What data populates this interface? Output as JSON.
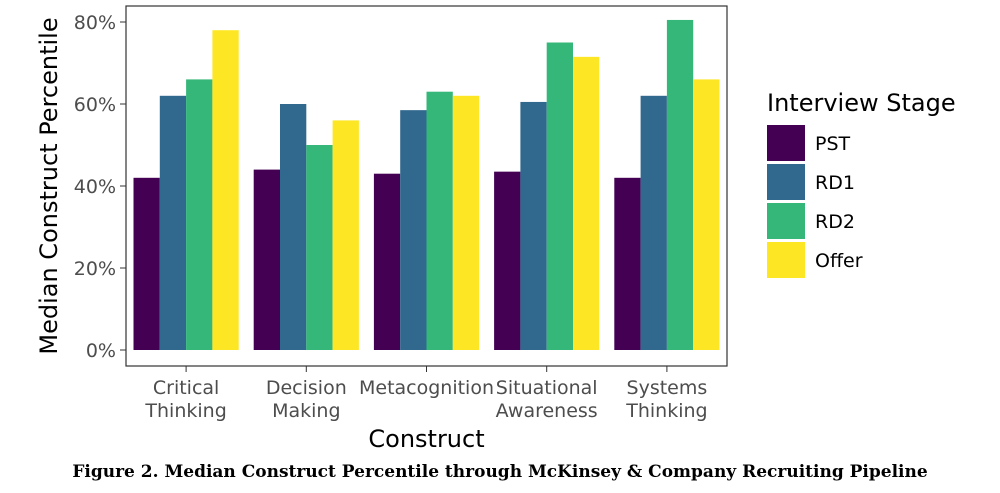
{
  "caption": "Figure 2. Median Construct Percentile through McKinsey & Company Recruiting Pipeline",
  "chart_data": {
    "type": "bar",
    "categories": [
      [
        "Critical",
        "Thinking"
      ],
      [
        "Decision",
        "Making"
      ],
      [
        "Metacognition"
      ],
      [
        "Situational",
        "Awareness"
      ],
      [
        "Systems",
        "Thinking"
      ]
    ],
    "series": [
      {
        "name": "PST",
        "color": "#440154",
        "values": [
          42,
          44,
          43,
          43.5,
          42
        ]
      },
      {
        "name": "RD1",
        "color": "#31688e",
        "values": [
          62,
          60,
          58.5,
          60.5,
          62
        ]
      },
      {
        "name": "RD2",
        "color": "#35b779",
        "values": [
          66,
          50,
          63,
          75,
          80.5
        ]
      },
      {
        "name": "Offer",
        "color": "#fde725",
        "values": [
          78,
          56,
          62,
          71.5,
          66
        ]
      }
    ],
    "xlabel": "Construct",
    "ylabel": "Median Construct Percentile",
    "legend_title": "Interview Stage",
    "legend_position": "right",
    "ylim": [
      0,
      80
    ],
    "yticks": [
      "0%",
      "20%",
      "40%",
      "60%",
      "80%"
    ],
    "grid": false
  }
}
